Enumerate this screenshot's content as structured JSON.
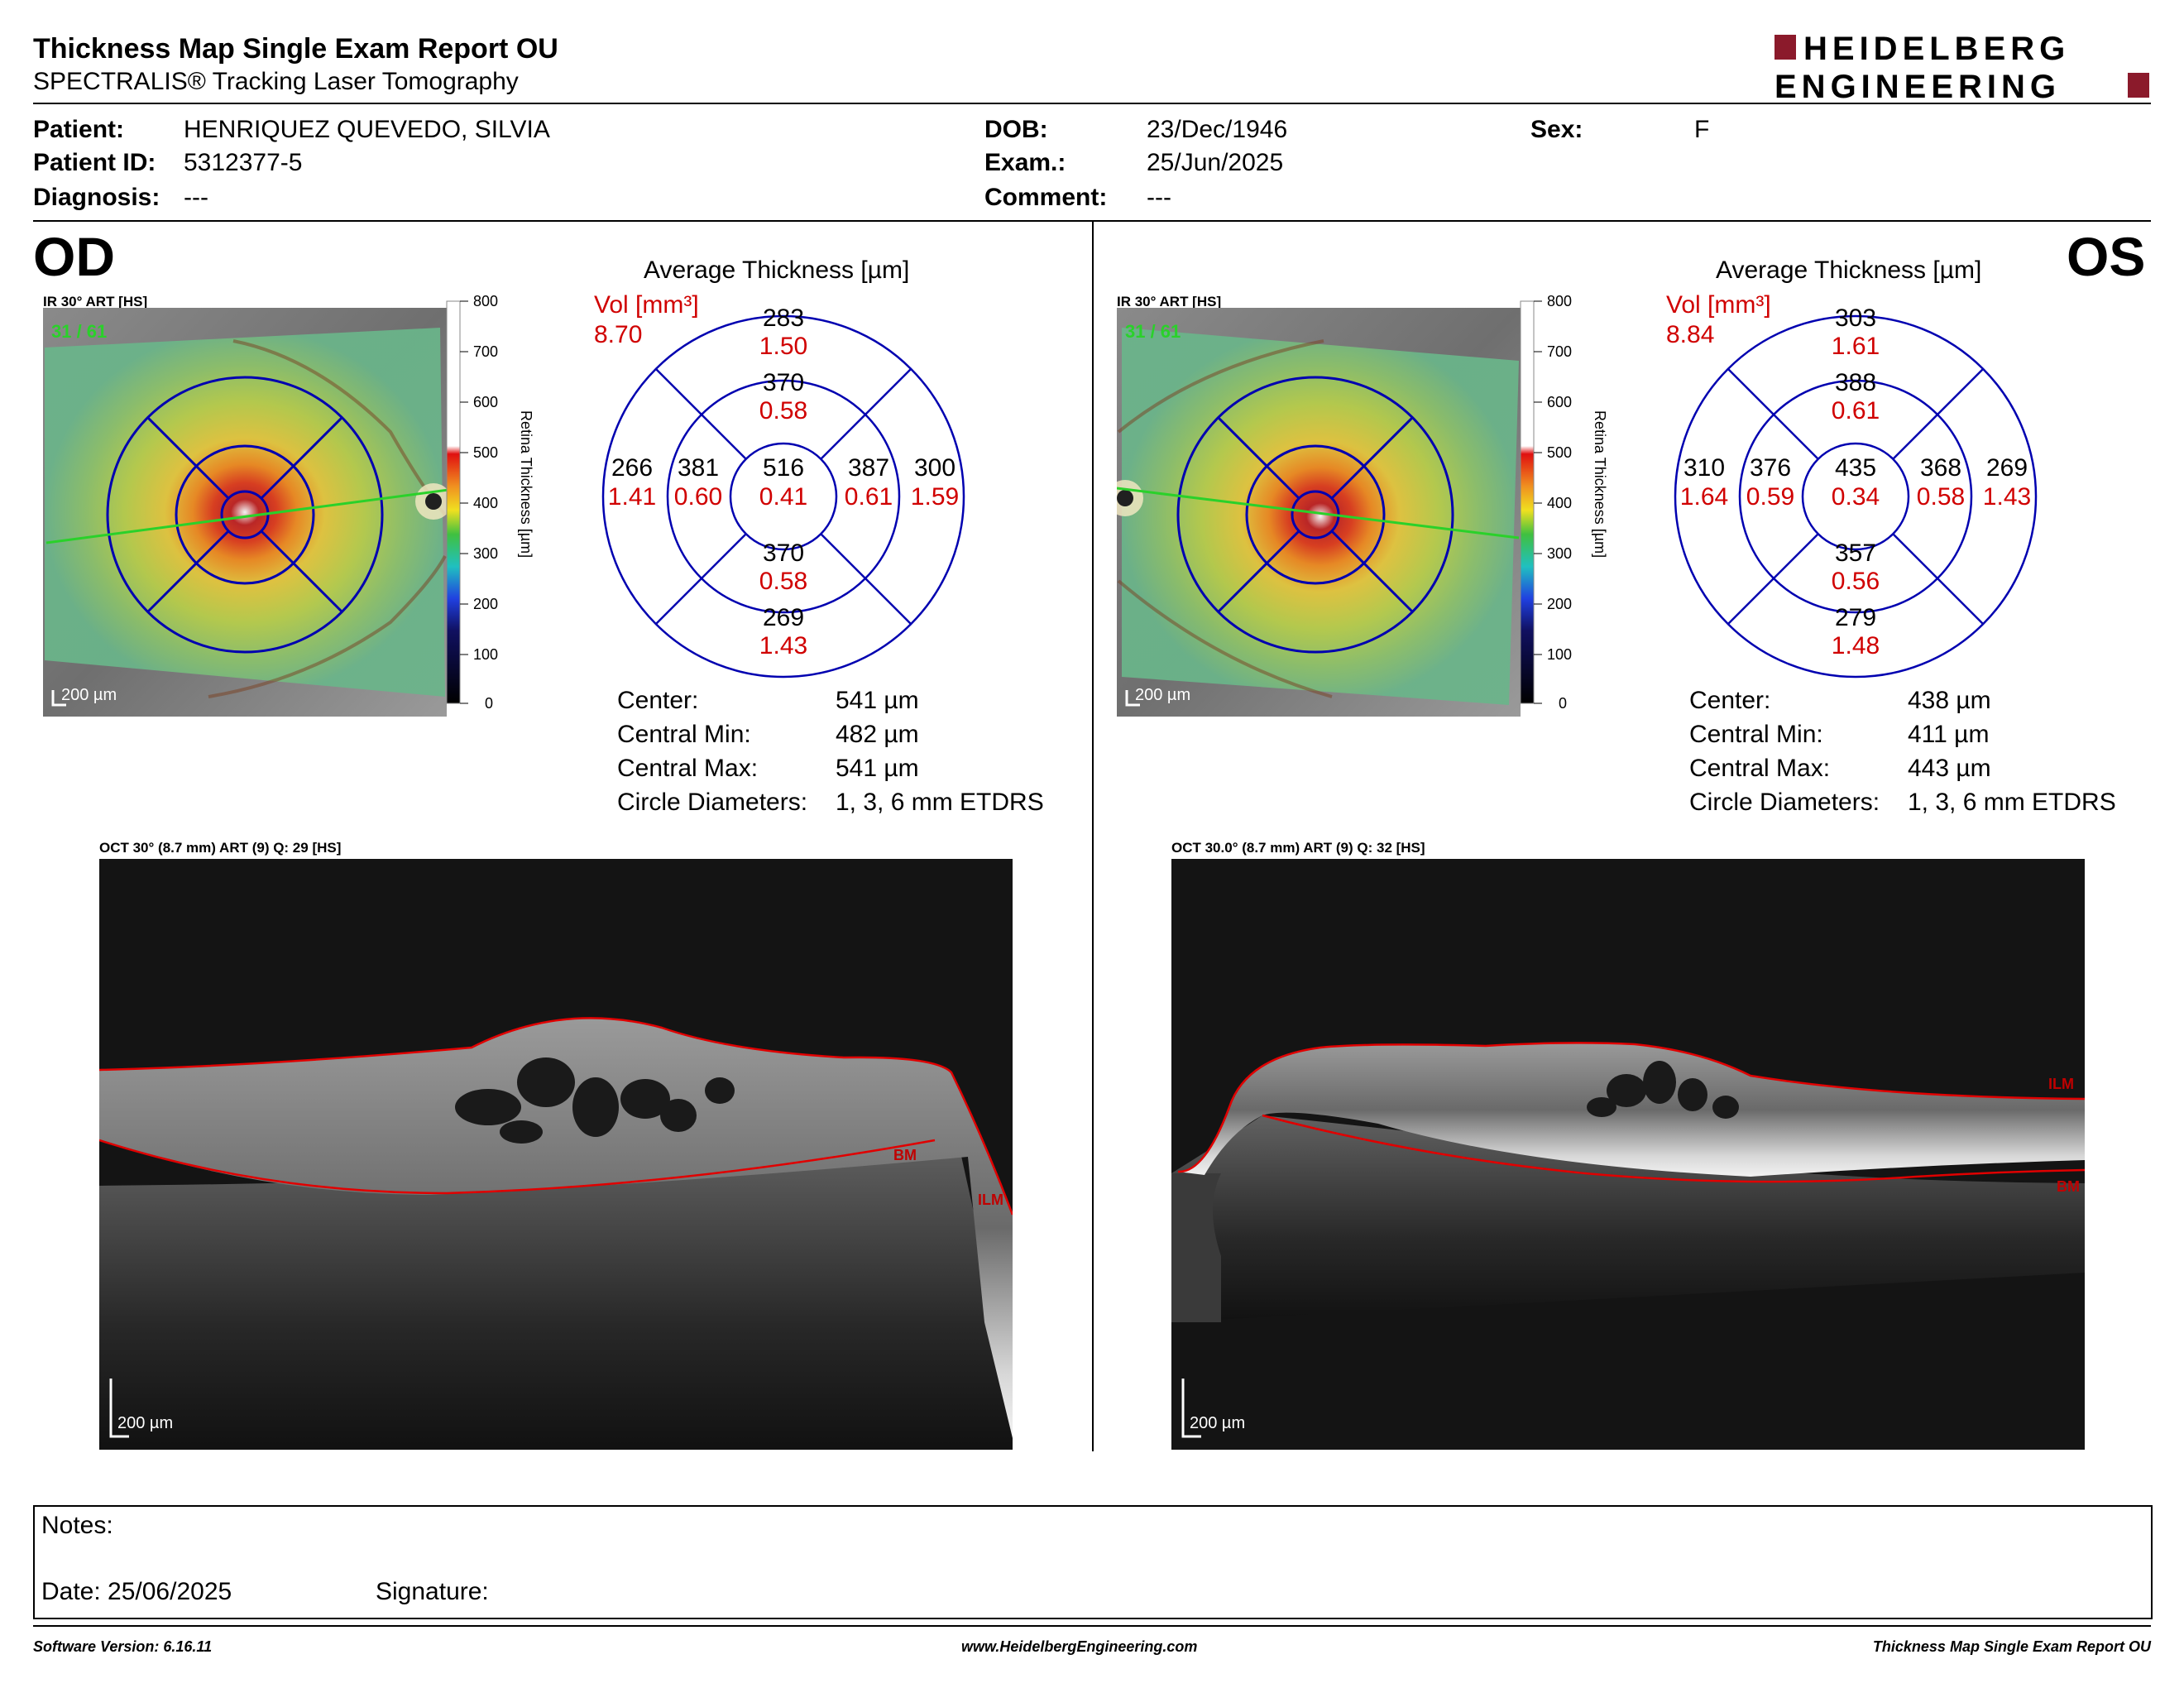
{
  "header": {
    "title": "Thickness Map Single Exam Report OU",
    "subtitle": "SPECTRALIS® Tracking Laser Tomography",
    "logo_line1": "HEIDELBERG",
    "logo_line2": "ENGINEERING"
  },
  "patient": {
    "patient_label": "Patient:",
    "patient_value": "HENRIQUEZ QUEVEDO, SILVIA",
    "id_label": "Patient ID:",
    "id_value": "5312377-5",
    "diag_label": "Diagnosis:",
    "diag_value": "---",
    "dob_label": "DOB:",
    "dob_value": "23/Dec/1946",
    "exam_label": "Exam.:",
    "exam_value": "25/Jun/2025",
    "comment_label": "Comment:",
    "comment_value": "---",
    "sex_label": "Sex:",
    "sex_value": "F"
  },
  "od": {
    "eye": "OD",
    "ir_label": "IR 30° ART [HS]",
    "frame": "31 / 61",
    "scale": "200 µm",
    "avg_title": "Average Thickness [µm]",
    "vol_label": "Vol [mm³]",
    "vol_value": "8.70",
    "sectors": {
      "outer_top": "283",
      "outer_top_vol": "1.50",
      "inner_top": "370",
      "inner_top_vol": "0.58",
      "outer_left": "266",
      "outer_left_vol": "1.41",
      "inner_left": "381",
      "inner_left_vol": "0.60",
      "center": "516",
      "center_vol": "0.41",
      "inner_right": "387",
      "inner_right_vol": "0.61",
      "outer_right": "300",
      "outer_right_vol": "1.59",
      "inner_bottom": "370",
      "inner_bottom_vol": "0.58",
      "outer_bottom": "269",
      "outer_bottom_vol": "1.43"
    },
    "center_label": "Center:",
    "center_value": "541 µm",
    "cmin_label": "Central Min:",
    "cmin_value": "482 µm",
    "cmax_label": "Central Max:",
    "cmax_value": "541 µm",
    "diam_label": "Circle Diameters:",
    "diam_value": "1, 3, 6 mm ETDRS",
    "oct_label": "OCT 30° (8.7 mm) ART (9) Q: 29 [HS]",
    "oct_scale": "200 µm",
    "ilm": "ILM",
    "bm": "BM"
  },
  "os": {
    "eye": "OS",
    "ir_label": "IR 30° ART [HS]",
    "frame": "31 / 61",
    "scale": "200 µm",
    "avg_title": "Average Thickness [µm]",
    "vol_label": "Vol [mm³]",
    "vol_value": "8.84",
    "sectors": {
      "outer_top": "303",
      "outer_top_vol": "1.61",
      "inner_top": "388",
      "inner_top_vol": "0.61",
      "outer_left": "310",
      "outer_left_vol": "1.64",
      "inner_left": "376",
      "inner_left_vol": "0.59",
      "center": "435",
      "center_vol": "0.34",
      "inner_right": "368",
      "inner_right_vol": "0.58",
      "outer_right": "269",
      "outer_right_vol": "1.43",
      "inner_bottom": "357",
      "inner_bottom_vol": "0.56",
      "outer_bottom": "279",
      "outer_bottom_vol": "1.48"
    },
    "center_label": "Center:",
    "center_value": "438 µm",
    "cmin_label": "Central Min:",
    "cmin_value": "411 µm",
    "cmax_label": "Central Max:",
    "cmax_value": "443 µm",
    "diam_label": "Circle Diameters:",
    "diam_value": "1, 3, 6 mm ETDRS",
    "oct_label": "OCT 30.0° (8.7 mm) ART (9) Q: 32 [HS]",
    "oct_scale": "200 µm",
    "ilm": "ILM",
    "bm": "BM"
  },
  "colorbar": {
    "ticks": [
      "800",
      "700",
      "600",
      "500",
      "400",
      "300",
      "200",
      "100",
      "0"
    ],
    "label": "Retina Thickness [µm]"
  },
  "notes": {
    "notes_label": "Notes:",
    "date_label": "Date: 25/06/2025",
    "signature_label": "Signature:"
  },
  "footer": {
    "software": "Software Version: 6.16.11",
    "website": "www.HeidelbergEngineering.com",
    "report": "Thickness Map Single Exam Report OU"
  },
  "colors": {
    "etdrs_blue": "#0000b0",
    "value_red": "#d00000",
    "logo_red": "#8b1a2b"
  }
}
